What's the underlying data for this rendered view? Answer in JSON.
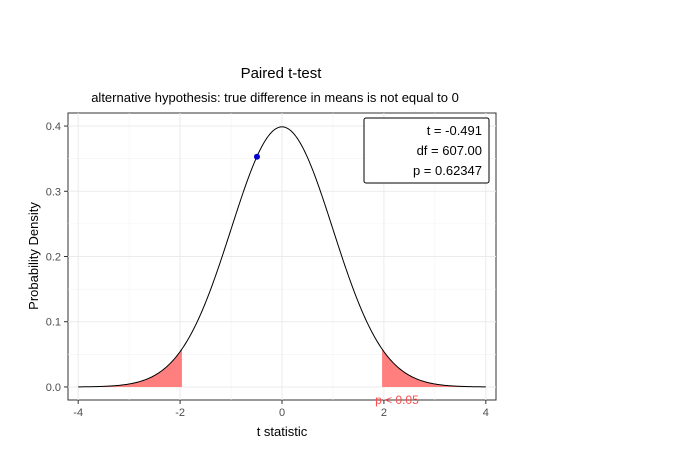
{
  "chart_data": {
    "type": "line",
    "title": "Paired t-test",
    "subtitle": "alternative hypothesis: true difference in means is not equal to 0",
    "xlabel": "t statistic",
    "ylabel": "Probability Density",
    "xlim": [
      -4.2,
      4.2
    ],
    "ylim": [
      -0.02,
      0.42
    ],
    "x_ticks": [
      -4,
      -2,
      0,
      2,
      4
    ],
    "x_tick_labels": [
      "-4",
      "-2",
      "0",
      "2",
      "4"
    ],
    "y_ticks": [
      0.0,
      0.1,
      0.2,
      0.3,
      0.4
    ],
    "y_tick_labels": [
      "0.0",
      "0.1",
      "0.2",
      "0.3",
      "0.4"
    ],
    "grid": true,
    "series": [
      {
        "distribution": "t",
        "df": 607,
        "x_range": [
          -4,
          4
        ],
        "color": "#000000"
      }
    ],
    "rejection_regions": {
      "critical_t": 1.964,
      "color": "#ff7f7f",
      "label": "p < 0.05"
    },
    "observed_point": {
      "x": -0.491,
      "y": 0.353,
      "color": "#0000cc"
    },
    "stats_box": {
      "t_line": "t = -0.491",
      "df_line": "df = 607.00",
      "p_line": "p = 0.62347",
      "placement": "top-right"
    }
  }
}
